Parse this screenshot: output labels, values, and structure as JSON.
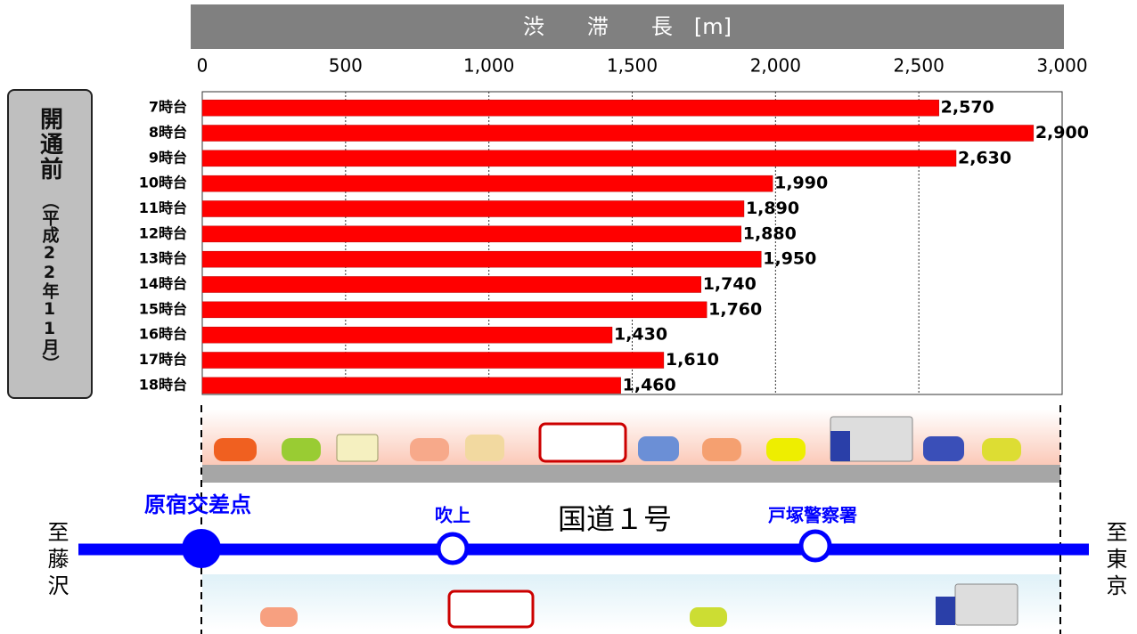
{
  "chart_data": {
    "type": "barh",
    "axis_label": "渋　　滞　　長　[m]",
    "categories": [
      "7時台",
      "8時台",
      "9時台",
      "10時台",
      "11時台",
      "12時台",
      "13時台",
      "14時台",
      "15時台",
      "16時台",
      "17時台",
      "18時台"
    ],
    "values": [
      2570,
      2900,
      2630,
      1990,
      1890,
      1880,
      1950,
      1740,
      1760,
      1430,
      1610,
      1460
    ],
    "value_labels": [
      "2,570",
      "2,900",
      "2,630",
      "1,990",
      "1,890",
      "1,880",
      "1,950",
      "1,740",
      "1,760",
      "1,430",
      "1,610",
      "1,460"
    ],
    "color": "#ff0000",
    "xlim": [
      0,
      3000
    ],
    "xticks": [
      0,
      500,
      {
        "value": 1000,
        "label": "1,000"
      },
      {
        "value": 1500,
        "label": "1,500"
      },
      {
        "value": 2000,
        "label": "2,000"
      },
      {
        "value": 2500,
        "label": "2,500"
      },
      {
        "value": 3000,
        "label": "3,000"
      }
    ],
    "grid": true
  },
  "panel": {
    "title": "開通前",
    "period": "（平成22年11月）"
  },
  "map": {
    "intersection": "原宿交差点",
    "stop1": "吹上",
    "road": "国道１号",
    "stop2": "戸塚警察署",
    "west": "至藤沢",
    "east": "至東京"
  }
}
